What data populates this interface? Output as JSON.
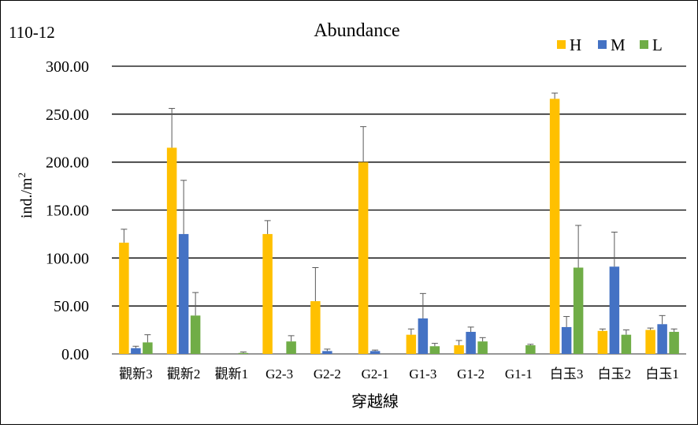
{
  "chart_data": {
    "type": "bar",
    "corner_label": "110-12",
    "title": "Abundance",
    "xlabel": "穿越線",
    "ylabel_main": "ind./m",
    "ylabel_sup": "2",
    "ylim": [
      0,
      300
    ],
    "yticks": [
      "0.00",
      "50.00",
      "100.00",
      "150.00",
      "200.00",
      "250.00",
      "300.00"
    ],
    "grid": true,
    "legend_position": "top-right",
    "categories": [
      "觀新3",
      "觀新2",
      "觀新1",
      "G2-3",
      "G2-2",
      "G2-1",
      "G1-3",
      "G1-2",
      "G1-1",
      "白玉3",
      "白玉2",
      "白玉1"
    ],
    "series": [
      {
        "name": "H",
        "color": "#FFC000",
        "values": [
          116,
          215,
          0,
          125,
          55,
          200,
          20,
          9,
          0,
          266,
          24,
          25
        ],
        "errors": [
          14,
          41,
          0,
          14,
          35,
          37,
          6,
          5,
          0,
          6,
          2,
          2
        ]
      },
      {
        "name": "M",
        "color": "#4472C4",
        "values": [
          6,
          125,
          0,
          0,
          3,
          3,
          37,
          23,
          0,
          28,
          91,
          31
        ],
        "errors": [
          2,
          56,
          0,
          0,
          2,
          1,
          26,
          5,
          0,
          11,
          36,
          9
        ]
      },
      {
        "name": "L",
        "color": "#70AD47",
        "values": [
          12,
          40,
          1,
          13,
          0,
          0,
          8,
          13,
          9,
          90,
          20,
          23
        ],
        "errors": [
          8,
          24,
          1,
          6,
          0,
          0,
          3,
          4,
          1,
          44,
          5,
          3
        ]
      }
    ]
  }
}
